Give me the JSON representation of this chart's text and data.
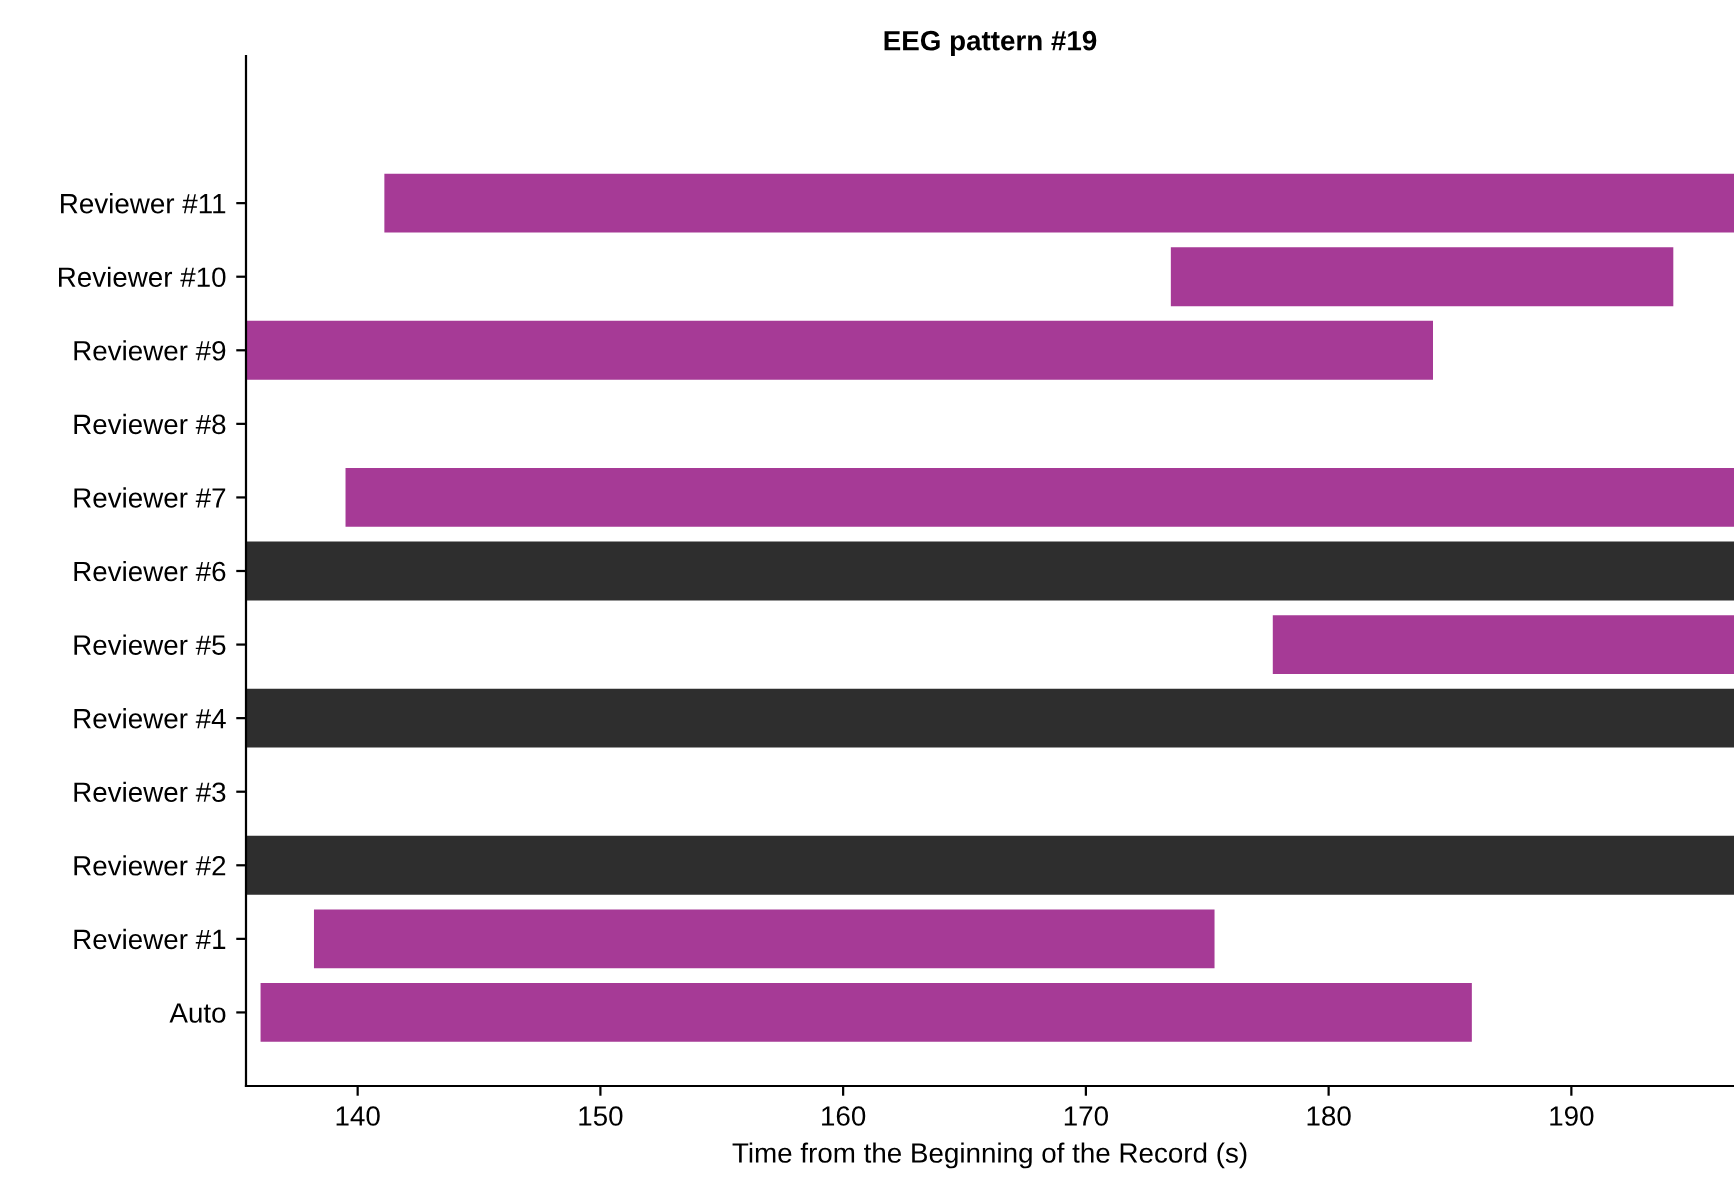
{
  "chart_data": {
    "type": "bar",
    "orientation": "horizontal",
    "title": "EEG pattern #19",
    "xlabel": "Time from the Beginning of the Record (s)",
    "categories": [
      "Reviewer #11",
      "Reviewer #10",
      "Reviewer #9",
      "Reviewer #8",
      "Reviewer #7",
      "Reviewer #6",
      "Reviewer #5",
      "Reviewer #4",
      "Reviewer #3",
      "Reviewer #2",
      "Reviewer #1",
      "Auto"
    ],
    "base": [
      141.1,
      173.5,
      135.4,
      null,
      139.5,
      135.4,
      177.7,
      135.4,
      null,
      135.4,
      138.2,
      136.0
    ],
    "values": [
      55.6,
      20.7,
      48.9,
      null,
      57.2,
      61.3,
      19.0,
      61.3,
      null,
      61.3,
      37.1,
      49.9
    ],
    "colors": [
      "#a63a96",
      "#a63a96",
      "#a63a96",
      null,
      "#a63a96",
      "#2e2e2e",
      "#a63a96",
      "#2e2e2e",
      null,
      "#2e2e2e",
      "#a63a96",
      "#a63a96"
    ],
    "xlim": [
      135.4,
      196.7
    ],
    "xticks": [
      140,
      150,
      160,
      170,
      180,
      190
    ],
    "grid": false,
    "legend": false
  }
}
